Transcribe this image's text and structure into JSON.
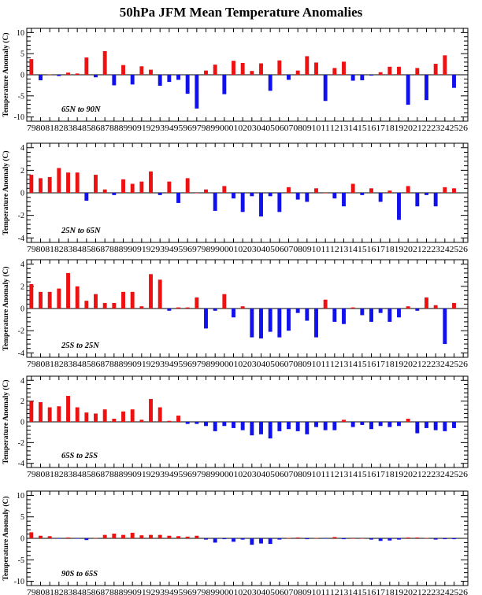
{
  "title": "50hPa JFM Mean Temperature Anomalies",
  "colors": {
    "positive": "#ee1111",
    "negative": "#1111ee",
    "axis": "#000000"
  },
  "chart_data": [
    {
      "type": "bar",
      "region": "65N to 90N",
      "ylabel": "Temperature Anomaly (C)",
      "ylim": [
        -11,
        11
      ],
      "yticks": [
        -10,
        -5,
        0,
        5,
        10
      ],
      "categories": [
        "79",
        "80",
        "81",
        "82",
        "83",
        "84",
        "85",
        "86",
        "87",
        "88",
        "89",
        "90",
        "91",
        "92",
        "93",
        "94",
        "95",
        "96",
        "97",
        "98",
        "99",
        "00",
        "01",
        "02",
        "03",
        "04",
        "05",
        "06",
        "07",
        "08",
        "09",
        "10",
        "11",
        "12",
        "13",
        "14",
        "15",
        "16",
        "17",
        "18",
        "19",
        "20",
        "21",
        "22",
        "23",
        "24",
        "25",
        "26"
      ],
      "values": [
        3.7,
        -1.3,
        0.1,
        -0.3,
        0.5,
        0.3,
        4.1,
        -0.6,
        5.6,
        -2.5,
        2.3,
        -2.3,
        2.0,
        1.2,
        -2.6,
        -1.7,
        -1.2,
        -4.5,
        -8.0,
        1.0,
        2.4,
        -4.6,
        3.3,
        2.8,
        0.9,
        2.7,
        -3.8,
        3.4,
        -1.2,
        1.0,
        4.4,
        2.9,
        -6.2,
        1.6,
        3.1,
        -1.4,
        -1.3,
        -0.2,
        0.6,
        1.9,
        1.9,
        -7.1,
        1.6,
        -6.0,
        2.6,
        4.6,
        -3.1,
        null
      ]
    },
    {
      "type": "bar",
      "region": "25N to 65N",
      "ylabel": "Temperature Anomaly (C)",
      "ylim": [
        -4.4,
        4.4
      ],
      "yticks": [
        -4,
        -2,
        0,
        2,
        4
      ],
      "categories": [
        "79",
        "80",
        "81",
        "82",
        "83",
        "84",
        "85",
        "86",
        "87",
        "88",
        "89",
        "90",
        "91",
        "92",
        "93",
        "94",
        "95",
        "96",
        "97",
        "98",
        "99",
        "00",
        "01",
        "02",
        "03",
        "04",
        "05",
        "06",
        "07",
        "08",
        "09",
        "10",
        "11",
        "12",
        "13",
        "14",
        "15",
        "16",
        "17",
        "18",
        "19",
        "20",
        "21",
        "22",
        "23",
        "24",
        "25",
        "26"
      ],
      "values": [
        1.6,
        1.3,
        1.4,
        2.2,
        1.8,
        1.8,
        -0.7,
        1.6,
        0.3,
        -0.2,
        1.2,
        0.8,
        1.0,
        1.9,
        -0.2,
        1.0,
        -0.9,
        1.3,
        0.0,
        0.3,
        -1.6,
        0.6,
        -0.5,
        -1.7,
        -0.3,
        -2.1,
        -0.3,
        -1.7,
        0.5,
        -0.6,
        -0.8,
        0.4,
        0.0,
        -0.5,
        -1.2,
        0.8,
        -0.2,
        0.4,
        -0.8,
        0.2,
        -2.4,
        0.6,
        -1.2,
        -0.2,
        -1.2,
        0.5,
        0.4,
        null
      ]
    },
    {
      "type": "bar",
      "region": "25S to 25N",
      "ylabel": "Temperature Anomaly (C)",
      "ylim": [
        -4.4,
        4.4
      ],
      "yticks": [
        -4,
        -2,
        0,
        2,
        4
      ],
      "categories": [
        "79",
        "80",
        "81",
        "82",
        "83",
        "84",
        "85",
        "86",
        "87",
        "88",
        "89",
        "90",
        "91",
        "92",
        "93",
        "94",
        "95",
        "96",
        "97",
        "98",
        "99",
        "00",
        "01",
        "02",
        "03",
        "04",
        "05",
        "06",
        "07",
        "08",
        "09",
        "10",
        "11",
        "12",
        "13",
        "14",
        "15",
        "16",
        "17",
        "18",
        "19",
        "20",
        "21",
        "22",
        "23",
        "24",
        "25",
        "26"
      ],
      "values": [
        2.2,
        1.5,
        1.5,
        1.8,
        3.2,
        2.0,
        0.7,
        1.3,
        0.5,
        0.5,
        1.5,
        1.5,
        0.2,
        3.1,
        2.6,
        -0.2,
        0.1,
        0.1,
        1.0,
        -1.8,
        -0.2,
        1.3,
        -0.8,
        0.2,
        -2.6,
        -2.7,
        -2.1,
        -2.6,
        -2.0,
        -0.4,
        -1.1,
        -2.6,
        0.8,
        -1.2,
        -1.4,
        0.1,
        -0.6,
        -1.2,
        -0.4,
        -1.2,
        -0.8,
        0.2,
        -0.2,
        1.0,
        0.3,
        -3.2,
        0.5,
        null
      ]
    },
    {
      "type": "bar",
      "region": "65S to 25S",
      "ylabel": "Temperature Anomaly (C)",
      "ylim": [
        -4.4,
        4.4
      ],
      "yticks": [
        -4,
        -2,
        0,
        2,
        4
      ],
      "categories": [
        "79",
        "80",
        "81",
        "82",
        "83",
        "84",
        "85",
        "86",
        "87",
        "88",
        "89",
        "90",
        "91",
        "92",
        "93",
        "94",
        "95",
        "96",
        "97",
        "98",
        "99",
        "00",
        "01",
        "02",
        "03",
        "04",
        "05",
        "06",
        "07",
        "08",
        "09",
        "10",
        "11",
        "12",
        "13",
        "14",
        "15",
        "16",
        "17",
        "18",
        "19",
        "20",
        "21",
        "22",
        "23",
        "24",
        "25",
        "26"
      ],
      "values": [
        2.0,
        1.9,
        1.4,
        1.5,
        2.5,
        1.4,
        0.9,
        0.8,
        1.2,
        0.3,
        1.0,
        1.2,
        0.2,
        2.2,
        1.4,
        0.1,
        0.6,
        -0.2,
        -0.2,
        -0.4,
        -0.9,
        -0.4,
        -0.6,
        -0.8,
        -1.3,
        -1.2,
        -1.6,
        -0.9,
        -0.7,
        -0.9,
        -1.2,
        -0.5,
        -0.8,
        -0.8,
        0.2,
        -0.5,
        -0.3,
        -0.7,
        -0.4,
        -0.5,
        -0.4,
        0.3,
        -1.1,
        -0.6,
        -0.8,
        -0.9,
        -0.6,
        null
      ]
    },
    {
      "type": "bar",
      "region": "90S to 65S",
      "ylabel": "Temperature Anomaly (C)",
      "ylim": [
        -11,
        11
      ],
      "yticks": [
        -10,
        -5,
        0,
        5,
        10
      ],
      "categories": [
        "79",
        "80",
        "81",
        "82",
        "83",
        "84",
        "85",
        "86",
        "87",
        "88",
        "89",
        "90",
        "91",
        "92",
        "93",
        "94",
        "95",
        "96",
        "97",
        "98",
        "99",
        "00",
        "01",
        "02",
        "03",
        "04",
        "05",
        "06",
        "07",
        "08",
        "09",
        "10",
        "11",
        "12",
        "13",
        "14",
        "15",
        "16",
        "17",
        "18",
        "19",
        "20",
        "21",
        "22",
        "23",
        "24",
        "25",
        "26"
      ],
      "values": [
        1.4,
        0.6,
        0.5,
        -0.1,
        0.2,
        -0.1,
        -0.4,
        0.1,
        0.8,
        1.1,
        0.8,
        1.3,
        0.7,
        0.8,
        0.8,
        0.6,
        0.5,
        0.4,
        0.6,
        -0.3,
        -1.0,
        -0.2,
        -0.8,
        -0.3,
        -1.5,
        -1.2,
        -1.3,
        -0.3,
        0.1,
        0.2,
        -0.2,
        0.1,
        -0.1,
        0.3,
        -0.2,
        0.0,
        0.0,
        -0.3,
        -0.6,
        -0.5,
        -0.3,
        0.2,
        0.2,
        0.1,
        -0.3,
        -0.2,
        -0.2,
        null
      ]
    }
  ]
}
